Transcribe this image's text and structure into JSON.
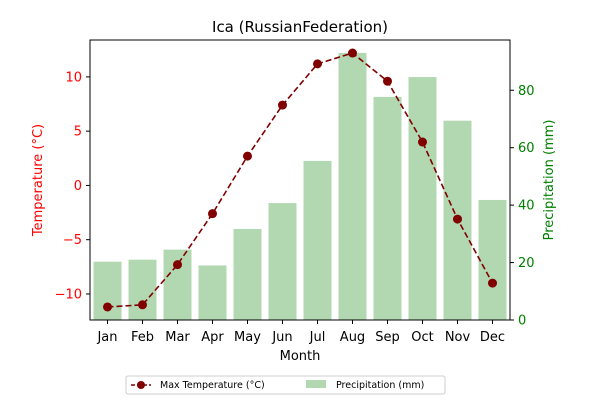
{
  "chart_data": {
    "type": "bar+line",
    "title": "Ica (RussianFederation)",
    "xlabel": "Month",
    "categories": [
      "Jan",
      "Feb",
      "Mar",
      "Apr",
      "May",
      "Jun",
      "Jul",
      "Aug",
      "Sep",
      "Oct",
      "Nov",
      "Dec"
    ],
    "left_axis": {
      "label": "Temperature (°C)",
      "color": "#ff0000",
      "ylim": [
        -12.4,
        13.4
      ],
      "ticks": [
        -10,
        -5,
        0,
        5,
        10
      ]
    },
    "right_axis": {
      "label": "Precipitation (mm)",
      "color": "#008000",
      "ylim": [
        0,
        97.5
      ],
      "ticks": [
        0,
        20,
        40,
        60,
        80
      ]
    },
    "series": [
      {
        "name": "Max Temperature (°C)",
        "type": "line",
        "axis": "left",
        "color": "#800000",
        "values": [
          -11.2,
          -11.0,
          -7.3,
          -2.6,
          2.7,
          7.4,
          11.2,
          12.2,
          9.6,
          4.0,
          -3.1,
          -9.0
        ]
      },
      {
        "name": "Precipitation (mm)",
        "type": "bar",
        "axis": "right",
        "color": "#b2d8b2",
        "values": [
          20.3,
          21.0,
          24.5,
          19.0,
          31.7,
          40.7,
          55.4,
          93.0,
          77.7,
          84.6,
          69.4,
          41.8
        ]
      }
    ],
    "legend": {
      "placement": "bottom-center",
      "columns": 2
    }
  }
}
